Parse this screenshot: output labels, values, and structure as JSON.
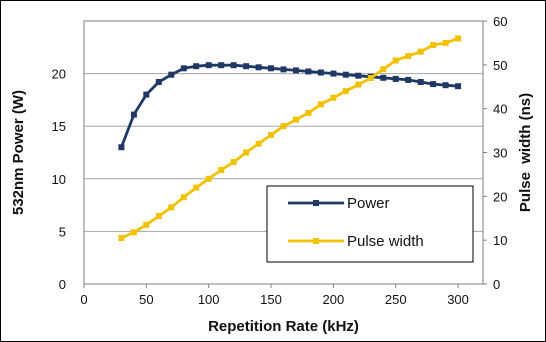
{
  "chart_data": {
    "type": "line",
    "xlabel": "Repetition Rate (kHz)",
    "ylabel": "532nm Power (W)",
    "y2label": "Pulse  width (ns)",
    "xlim": [
      0,
      320
    ],
    "ylim": [
      0,
      25
    ],
    "y2lim": [
      0,
      60
    ],
    "xticks": [
      "0",
      "50",
      "100",
      "150",
      "200",
      "250",
      "300"
    ],
    "yticks": [
      "0",
      "5",
      "10",
      "15",
      "20"
    ],
    "y2ticks": [
      "0",
      "10",
      "20",
      "30",
      "40",
      "50",
      "60"
    ],
    "grid": "horizontal",
    "legend_position": "lower-right",
    "series": [
      {
        "name": "Power",
        "axis": "left",
        "color": "#1f3864",
        "x": [
          30,
          40,
          50,
          60,
          70,
          80,
          90,
          100,
          110,
          120,
          130,
          140,
          150,
          160,
          170,
          180,
          190,
          200,
          210,
          220,
          230,
          240,
          250,
          260,
          270,
          280,
          290,
          300
        ],
        "y": [
          13.0,
          16.1,
          18.0,
          19.2,
          19.9,
          20.5,
          20.7,
          20.8,
          20.8,
          20.8,
          20.7,
          20.6,
          20.5,
          20.4,
          20.3,
          20.2,
          20.1,
          20.0,
          19.9,
          19.8,
          19.7,
          19.6,
          19.5,
          19.4,
          19.2,
          19.0,
          18.9,
          18.8
        ]
      },
      {
        "name": "Pulse width",
        "axis": "right",
        "color": "#f2c200",
        "x": [
          30,
          40,
          50,
          60,
          70,
          80,
          90,
          100,
          110,
          120,
          130,
          140,
          150,
          160,
          170,
          180,
          190,
          200,
          210,
          220,
          230,
          240,
          250,
          260,
          270,
          280,
          290,
          300
        ],
        "y": [
          10.5,
          11.8,
          13.5,
          15.5,
          17.5,
          19.8,
          22.0,
          24.0,
          26.0,
          27.8,
          30.0,
          32.0,
          34.0,
          36.0,
          37.5,
          39.0,
          41.0,
          42.5,
          44.0,
          45.5,
          47.0,
          49.0,
          51.0,
          52.0,
          53.0,
          54.5,
          55.0,
          56.0
        ]
      }
    ]
  }
}
